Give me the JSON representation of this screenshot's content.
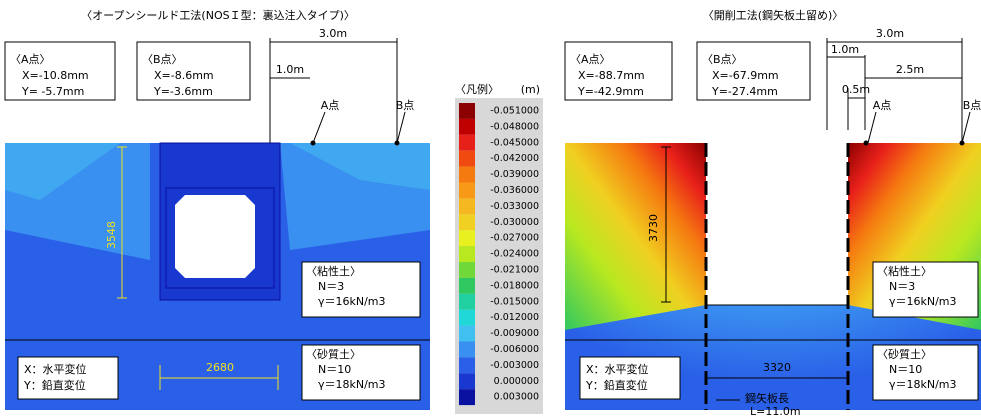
{
  "left": {
    "title": "〈オープンシールド工法(NOSＩ型：裏込注入タイプ)〉",
    "point_a": {
      "label": "〈A点〉",
      "x": "X=-10.8mm",
      "y": "Y= -5.7mm"
    },
    "point_b": {
      "label": "〈B点〉",
      "x": "X=-8.6mm",
      "y": "Y=-3.6mm"
    },
    "dim_total": "3.0m",
    "dim_a": "1.0m",
    "label_a": "A点",
    "label_b": "B点",
    "depth": "3548",
    "width": "2680",
    "clay": {
      "title": "〈粘性土〉",
      "n": "N＝3",
      "gamma": "γ＝16kN/m3"
    },
    "sand": {
      "title": "〈砂質土〉",
      "n": "N＝10",
      "gamma": "γ＝18kN/m3"
    },
    "axis_note": {
      "x": "X：水平変位",
      "y": "Y：鉛直変位"
    }
  },
  "legend": {
    "title": "〈凡例〉",
    "unit": "(m)",
    "items": [
      {
        "label": "-0.051000",
        "color": "#8b0000"
      },
      {
        "label": "-0.048000",
        "color": "#c00000"
      },
      {
        "label": "-0.045000",
        "color": "#e8201a"
      },
      {
        "label": "-0.042000",
        "color": "#f04a10"
      },
      {
        "label": "-0.039000",
        "color": "#f57a10"
      },
      {
        "label": "-0.036000",
        "color": "#f89a18"
      },
      {
        "label": "-0.033000",
        "color": "#f5b820"
      },
      {
        "label": "-0.030000",
        "color": "#f0d020"
      },
      {
        "label": "-0.027000",
        "color": "#e8f020"
      },
      {
        "label": "-0.024000",
        "color": "#b8e820"
      },
      {
        "label": "-0.021000",
        "color": "#70d838"
      },
      {
        "label": "-0.018000",
        "color": "#30c860"
      },
      {
        "label": "-0.015000",
        "color": "#20d0a0"
      },
      {
        "label": "-0.012000",
        "color": "#20d8d8"
      },
      {
        "label": "-0.009000",
        "color": "#40c0f0"
      },
      {
        "label": "-0.006000",
        "color": "#3a90f0"
      },
      {
        "label": "-0.003000",
        "color": "#2a60e8"
      },
      {
        "label": "0.000000",
        "color": "#1838d0"
      },
      {
        "label": "0.003000",
        "color": "#0a10a0"
      }
    ]
  },
  "right": {
    "title": "〈開削工法(鋼矢板土留め)〉",
    "point_a": {
      "label": "〈A点〉",
      "x": "X=-88.7mm",
      "y": "Y=-42.9mm"
    },
    "point_b": {
      "label": "〈B点〉",
      "x": "X=-67.9mm",
      "y": "Y=-27.4mm"
    },
    "dim_total": "3.0m",
    "dim_a": "1.0m",
    "dim_b": "2.5m",
    "dim_c": "0.5m",
    "label_a": "A点",
    "label_b": "B点",
    "depth": "3730",
    "width": "3320",
    "clay": {
      "title": "〈粘性土〉",
      "n": "N＝3",
      "gamma": "γ＝16kN/m3"
    },
    "sand": {
      "title": "〈砂質土〉",
      "n": "N＝10",
      "gamma": "γ＝18kN/m3"
    },
    "axis_note": {
      "x": "X：水平変位",
      "y": "Y：鉛直変位"
    },
    "pile": {
      "title": "鋼矢板長",
      "length": "L=11.0m"
    }
  }
}
